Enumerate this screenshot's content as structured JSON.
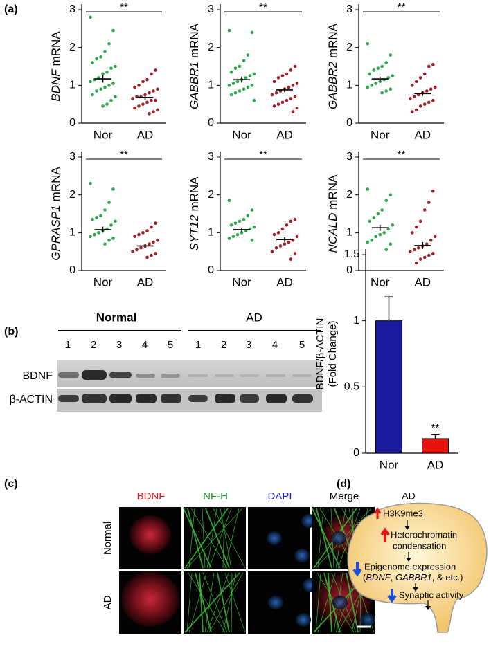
{
  "panel_labels": [
    "(a)",
    "(b)",
    "(c)",
    "(d)"
  ],
  "chart_data": [
    {
      "type": "strip",
      "ylabel": [
        "BDNF",
        "mRNA"
      ],
      "categories": [
        "Nor",
        "AD"
      ],
      "ylim": [
        0,
        3
      ],
      "yticks": [
        0,
        1,
        2,
        3
      ],
      "annotation": "**",
      "groups": [
        {
          "color": "#2ca84a",
          "values": [
            2.8,
            2.45,
            2.1,
            1.9,
            1.75,
            1.7,
            1.6,
            1.5,
            1.45,
            1.35,
            1.3,
            1.2,
            1.15,
            1.1,
            1.05,
            1.0,
            0.95,
            0.9,
            0.85,
            0.75,
            0.7,
            0.6,
            0.5,
            0.45
          ],
          "mean": 1.17,
          "sem": 0.1
        },
        {
          "color": "#a41e22",
          "values": [
            1.4,
            1.3,
            1.15,
            1.1,
            1.0,
            0.95,
            0.9,
            0.85,
            0.8,
            0.75,
            0.7,
            0.7,
            0.65,
            0.6,
            0.6,
            0.55,
            0.5,
            0.45,
            0.4,
            0.35,
            0.3,
            0.25
          ],
          "mean": 0.68,
          "sem": 0.06
        }
      ]
    },
    {
      "type": "strip",
      "ylabel": [
        "GABBR1",
        "mRNA"
      ],
      "categories": [
        "Nor",
        "AD"
      ],
      "ylim": [
        0,
        3
      ],
      "yticks": [
        0,
        1,
        2,
        3
      ],
      "annotation": "**",
      "groups": [
        {
          "color": "#2ca84a",
          "values": [
            2.45,
            2.4,
            1.8,
            1.65,
            1.5,
            1.45,
            1.35,
            1.3,
            1.25,
            1.2,
            1.15,
            1.1,
            1.05,
            1.0,
            1.0,
            0.95,
            0.9,
            0.85,
            0.8,
            0.75,
            0.6
          ],
          "mean": 1.15,
          "sem": 0.08
        },
        {
          "color": "#a41e22",
          "values": [
            1.5,
            1.4,
            1.3,
            1.25,
            1.2,
            1.1,
            1.05,
            1.0,
            0.95,
            0.9,
            0.85,
            0.8,
            0.75,
            0.7,
            0.65,
            0.6,
            0.55,
            0.5,
            0.45,
            0.4,
            0.3
          ],
          "mean": 0.88,
          "sem": 0.06
        }
      ]
    },
    {
      "type": "strip",
      "ylabel": [
        "GABBR2",
        "mRNA"
      ],
      "categories": [
        "Nor",
        "AD"
      ],
      "ylim": [
        0,
        3
      ],
      "yticks": [
        0,
        1,
        2,
        3
      ],
      "annotation": "**",
      "groups": [
        {
          "color": "#2ca84a",
          "values": [
            2.1,
            1.8,
            1.6,
            1.5,
            1.45,
            1.4,
            1.3,
            1.25,
            1.2,
            1.15,
            1.1,
            1.05,
            1.0,
            0.95,
            0.9,
            0.85,
            0.8
          ],
          "mean": 1.17,
          "sem": 0.06
        },
        {
          "color": "#a41e22",
          "values": [
            1.55,
            1.5,
            1.3,
            1.2,
            1.1,
            1.0,
            0.95,
            0.9,
            0.85,
            0.8,
            0.75,
            0.7,
            0.65,
            0.6,
            0.55,
            0.5,
            0.45,
            0.35,
            0.3
          ],
          "mean": 0.78,
          "sem": 0.06
        }
      ]
    },
    {
      "type": "strip",
      "ylabel": [
        "GPRASP1",
        "mRNA"
      ],
      "categories": [
        "Nor",
        "AD"
      ],
      "ylim": [
        0,
        3
      ],
      "yticks": [
        0,
        1,
        2,
        3
      ],
      "annotation": "**",
      "groups": [
        {
          "color": "#2ca84a",
          "values": [
            2.3,
            2.15,
            1.8,
            1.6,
            1.45,
            1.4,
            1.35,
            1.3,
            1.2,
            1.1,
            1.05,
            1.0,
            0.95,
            0.9,
            0.85,
            0.8,
            0.7
          ],
          "mean": 1.08,
          "sem": 0.08
        },
        {
          "color": "#a41e22",
          "values": [
            1.25,
            1.15,
            1.05,
            1.0,
            0.95,
            0.9,
            0.8,
            0.75,
            0.7,
            0.65,
            0.6,
            0.55,
            0.5,
            0.45,
            0.4,
            0.35
          ],
          "mean": 0.65,
          "sem": 0.05
        }
      ]
    },
    {
      "type": "strip",
      "ylabel": [
        "SYT12",
        "mRNA"
      ],
      "categories": [
        "Nor",
        "AD"
      ],
      "ylim": [
        0,
        3
      ],
      "yticks": [
        0,
        1,
        2,
        3
      ],
      "annotation": "**",
      "groups": [
        {
          "color": "#2ca84a",
          "values": [
            1.85,
            1.6,
            1.45,
            1.35,
            1.3,
            1.25,
            1.2,
            1.15,
            1.1,
            1.05,
            1.0,
            0.95,
            0.9,
            0.85,
            0.8
          ],
          "mean": 1.08,
          "sem": 0.05
        },
        {
          "color": "#a41e22",
          "values": [
            1.35,
            1.3,
            1.2,
            1.1,
            1.0,
            0.95,
            0.9,
            0.8,
            0.75,
            0.7,
            0.65,
            0.6,
            0.5,
            0.45,
            0.3
          ],
          "mean": 0.82,
          "sem": 0.06
        }
      ]
    },
    {
      "type": "strip",
      "ylabel": [
        "NCALD",
        "mRNA"
      ],
      "categories": [
        "Nor",
        "AD"
      ],
      "ylim": [
        0,
        3
      ],
      "yticks": [
        0,
        1,
        2,
        3
      ],
      "annotation": "**",
      "groups": [
        {
          "color": "#2ca84a",
          "values": [
            2.15,
            2.0,
            1.85,
            1.6,
            1.5,
            1.4,
            1.3,
            1.2,
            1.1,
            1.0,
            0.95,
            0.9,
            0.8,
            0.75,
            0.7,
            0.55
          ],
          "mean": 1.13,
          "sem": 0.08
        },
        {
          "color": "#a41e22",
          "values": [
            2.1,
            1.8,
            1.6,
            1.3,
            1.15,
            1.0,
            0.9,
            0.8,
            0.7,
            0.65,
            0.6,
            0.55,
            0.5,
            0.45,
            0.4,
            0.35,
            0.3,
            0.2
          ],
          "mean": 0.66,
          "sem": 0.09
        }
      ]
    },
    {
      "type": "bar",
      "ylabel": [
        "BDNF/β-ACTIN",
        "(Fold Change)"
      ],
      "categories": [
        "Nor",
        "AD"
      ],
      "values": [
        1,
        0.11
      ],
      "errors": [
        0.18,
        0.03
      ],
      "colors": [
        "#1a1a9c",
        "#e8120c"
      ],
      "annotations": [
        null,
        "**"
      ],
      "ylim": [
        0,
        1.5
      ],
      "yticks": [
        0,
        0.5,
        1,
        1.5
      ]
    }
  ],
  "blot": {
    "groups": [
      "Normal",
      "AD"
    ],
    "lanes": [
      [
        "1",
        "2",
        "3",
        "4",
        "5"
      ],
      [
        "1",
        "2",
        "3",
        "4",
        "5"
      ]
    ],
    "rows": [
      "BDNF",
      "β-ACTIN"
    ]
  },
  "micrograph": {
    "columns": [
      "BDNF",
      "NF-H",
      "DAPI",
      "Merge"
    ],
    "rows": [
      "Normal",
      "AD"
    ]
  },
  "diagram": {
    "title": "AD",
    "steps": [
      [
        "H3K9me3"
      ],
      [
        "Heterochromatin",
        "condensation"
      ],
      [
        "Epigenome expression"
      ],
      [
        "Synaptic activity"
      ]
    ],
    "detail": [
      "(",
      "BDNF",
      ", ",
      "GABBR1",
      ", & etc.)"
    ]
  }
}
